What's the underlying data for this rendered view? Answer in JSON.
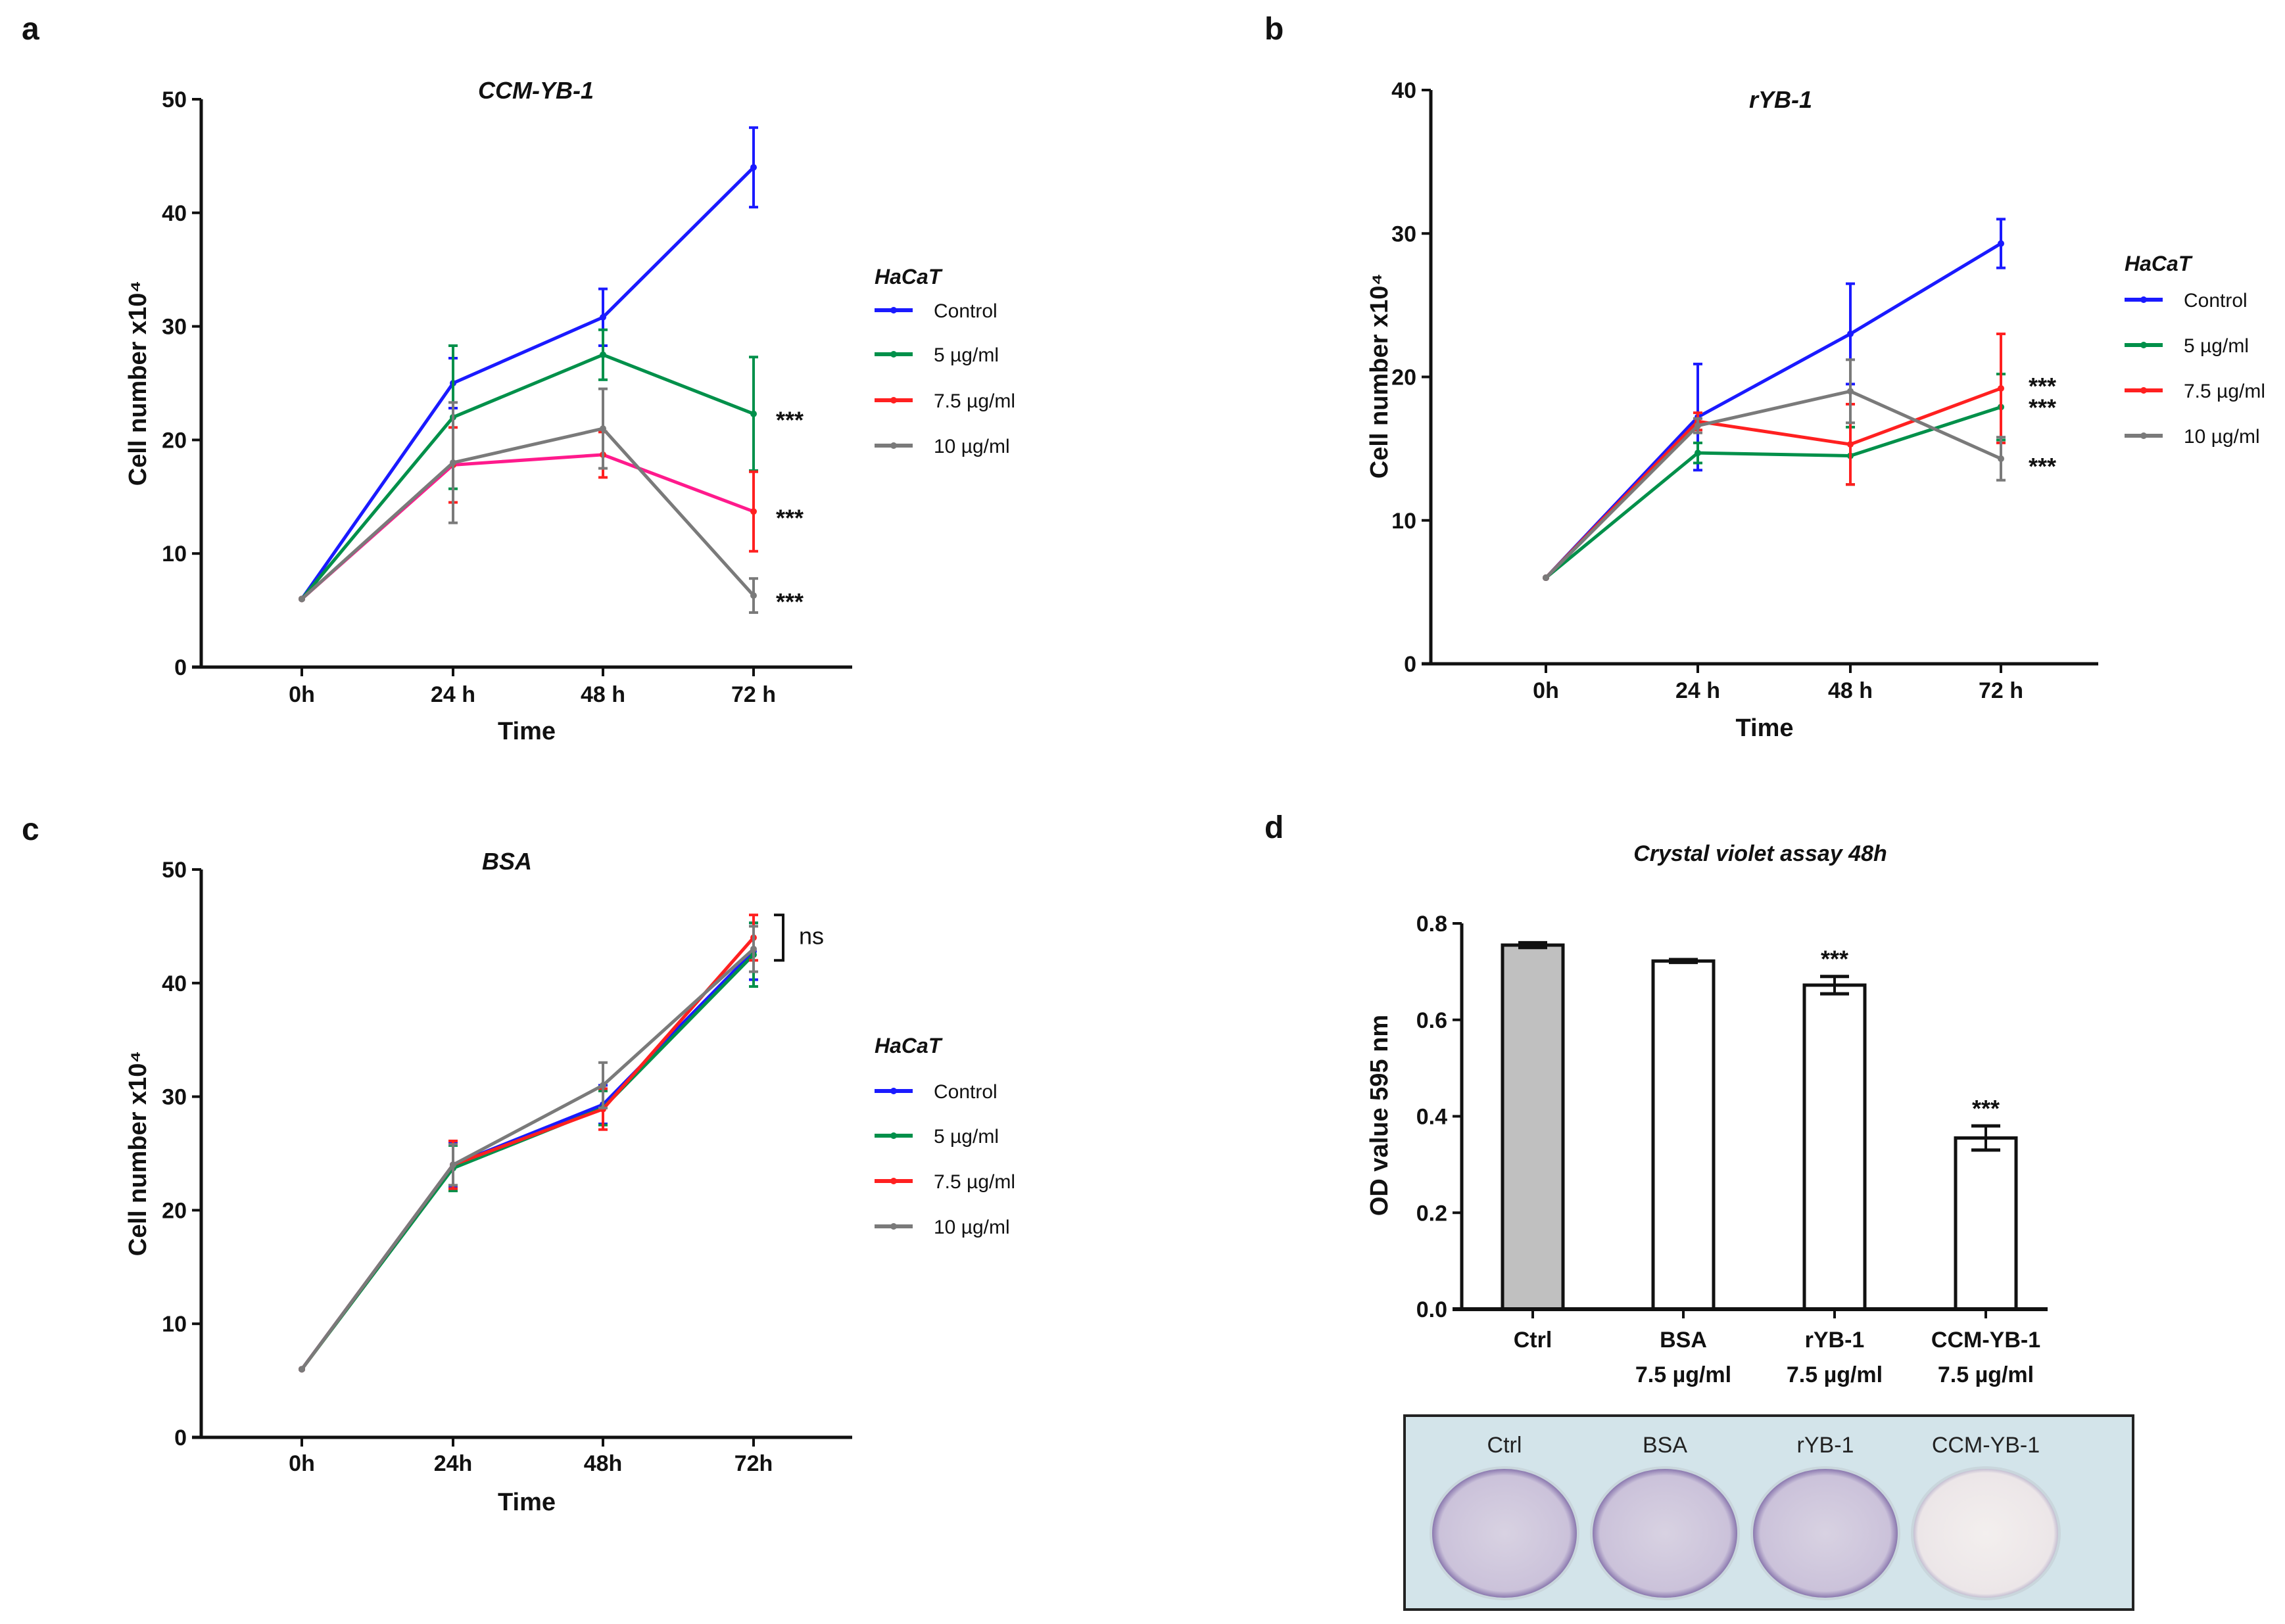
{
  "panel_letters": [
    "a",
    "b",
    "c",
    "d"
  ],
  "legend_title": "HaCaT",
  "colors": {
    "Control": "#1a1aff",
    "5 µg/ml": "#00904a",
    "7.5 µg/ml": "#ff2020",
    "7.5 µg/ml (a line)": "#ff1a8c",
    "10 µg/ml": "#7a7a7a",
    "ctrl_bar": "#c0c0c0"
  },
  "chart_data": [
    {
      "type": "line",
      "title": "CCM-YB-1",
      "xlabel": "Time",
      "ylabel": "Cell number x10⁴",
      "categories": [
        "0h",
        "24 h",
        "48 h",
        "72 h"
      ],
      "ylim": [
        0,
        50
      ],
      "yticks": [
        "0",
        "10",
        "20",
        "30",
        "40",
        "50"
      ],
      "legend": "right",
      "grid": false,
      "series": [
        {
          "name": "Control",
          "values": [
            6,
            25,
            30.8,
            44
          ],
          "errors": [
            0,
            2.2,
            2.5,
            3.5
          ]
        },
        {
          "name": "5 µg/ml",
          "values": [
            6,
            22,
            27.5,
            22.3
          ],
          "errors": [
            0,
            6.3,
            2.2,
            5
          ]
        },
        {
          "name": "7.5 µg/ml",
          "values": [
            6,
            17.8,
            18.7,
            13.7
          ],
          "errors": [
            0,
            3.3,
            2,
            3.5
          ]
        },
        {
          "name": "10 µg/ml",
          "values": [
            6,
            18,
            21,
            6.3
          ],
          "errors": [
            0,
            5.3,
            3.5,
            1.5
          ]
        }
      ],
      "annotations": [
        {
          "text": "***",
          "y": 22.3
        },
        {
          "text": "***",
          "y": 13.7
        },
        {
          "text": "***",
          "y": 6.3
        }
      ]
    },
    {
      "type": "line",
      "title": "rYB-1",
      "xlabel": "Time",
      "ylabel": "Cell number x10⁴",
      "categories": [
        "0h",
        "24 h",
        "48 h",
        "72 h"
      ],
      "ylim": [
        0,
        40
      ],
      "yticks": [
        "0",
        "10",
        "20",
        "30",
        "40"
      ],
      "legend": "right",
      "grid": false,
      "series": [
        {
          "name": "Control",
          "values": [
            6,
            17.2,
            23,
            29.3
          ],
          "errors": [
            0,
            3.7,
            3.5,
            1.7
          ]
        },
        {
          "name": "5 µg/ml",
          "values": [
            6,
            14.7,
            14.5,
            17.9
          ],
          "errors": [
            0,
            0.7,
            2,
            2.3
          ]
        },
        {
          "name": "7.5 µg/ml",
          "values": [
            6,
            16.9,
            15.3,
            19.2
          ],
          "errors": [
            0,
            0.6,
            2.8,
            3.8
          ]
        },
        {
          "name": "10 µg/ml",
          "values": [
            6,
            16.6,
            19,
            14.3
          ],
          "errors": [
            0,
            0.5,
            2.2,
            1.5
          ]
        }
      ],
      "annotations": [
        {
          "text": "***",
          "y": 19.8
        },
        {
          "text": "***",
          "y": 18.3
        },
        {
          "text": "***",
          "y": 14.2
        }
      ]
    },
    {
      "type": "line",
      "title": "BSA",
      "xlabel": "Time",
      "ylabel": "Cell number x10⁴",
      "categories": [
        "0h",
        "24h",
        "48h",
        "72h"
      ],
      "ylim": [
        0,
        50
      ],
      "yticks": [
        "0",
        "10",
        "20",
        "30",
        "40",
        "50"
      ],
      "legend": "right",
      "grid": false,
      "series": [
        {
          "name": "Control",
          "values": [
            6,
            24,
            29.3,
            42.8
          ],
          "errors": [
            0,
            1.9,
            1.7,
            2.5
          ]
        },
        {
          "name": "5 µg/ml",
          "values": [
            6,
            23.7,
            29,
            42.5
          ],
          "errors": [
            0,
            2,
            1.5,
            2.8
          ]
        },
        {
          "name": "7.5 µg/ml",
          "values": [
            6,
            24,
            28.9,
            44
          ],
          "errors": [
            0,
            2.1,
            1.8,
            2
          ]
        },
        {
          "name": "10 µg/ml",
          "values": [
            6,
            24,
            31,
            43
          ],
          "errors": [
            0,
            1.8,
            2,
            2
          ]
        }
      ],
      "annotations": [
        {
          "text": "ns",
          "y_range": [
            42,
            46
          ]
        }
      ]
    },
    {
      "type": "bar",
      "title": "Crystal violet assay 48h",
      "xlabel": "",
      "ylabel": "OD value 595 nm",
      "categories": [
        [
          "Ctrl",
          ""
        ],
        [
          "BSA",
          "7.5 µg/ml"
        ],
        [
          "rYB-1",
          "7.5 µg/ml"
        ],
        [
          "CCM-YB-1",
          "7.5 µg/ml"
        ]
      ],
      "ylim": [
        0,
        0.8
      ],
      "yticks": [
        "0.0",
        "0.2",
        "0.4",
        "0.6",
        "0.8"
      ],
      "grid": false,
      "values": [
        0.755,
        0.722,
        0.672,
        0.355
      ],
      "errors": [
        0.005,
        0.003,
        0.018,
        0.025
      ],
      "annotations": [
        "",
        "",
        "***",
        "***"
      ]
    }
  ],
  "photo": {
    "labels": [
      "Ctrl",
      "BSA",
      "rYB-1",
      "CCM-YB-1"
    ]
  }
}
